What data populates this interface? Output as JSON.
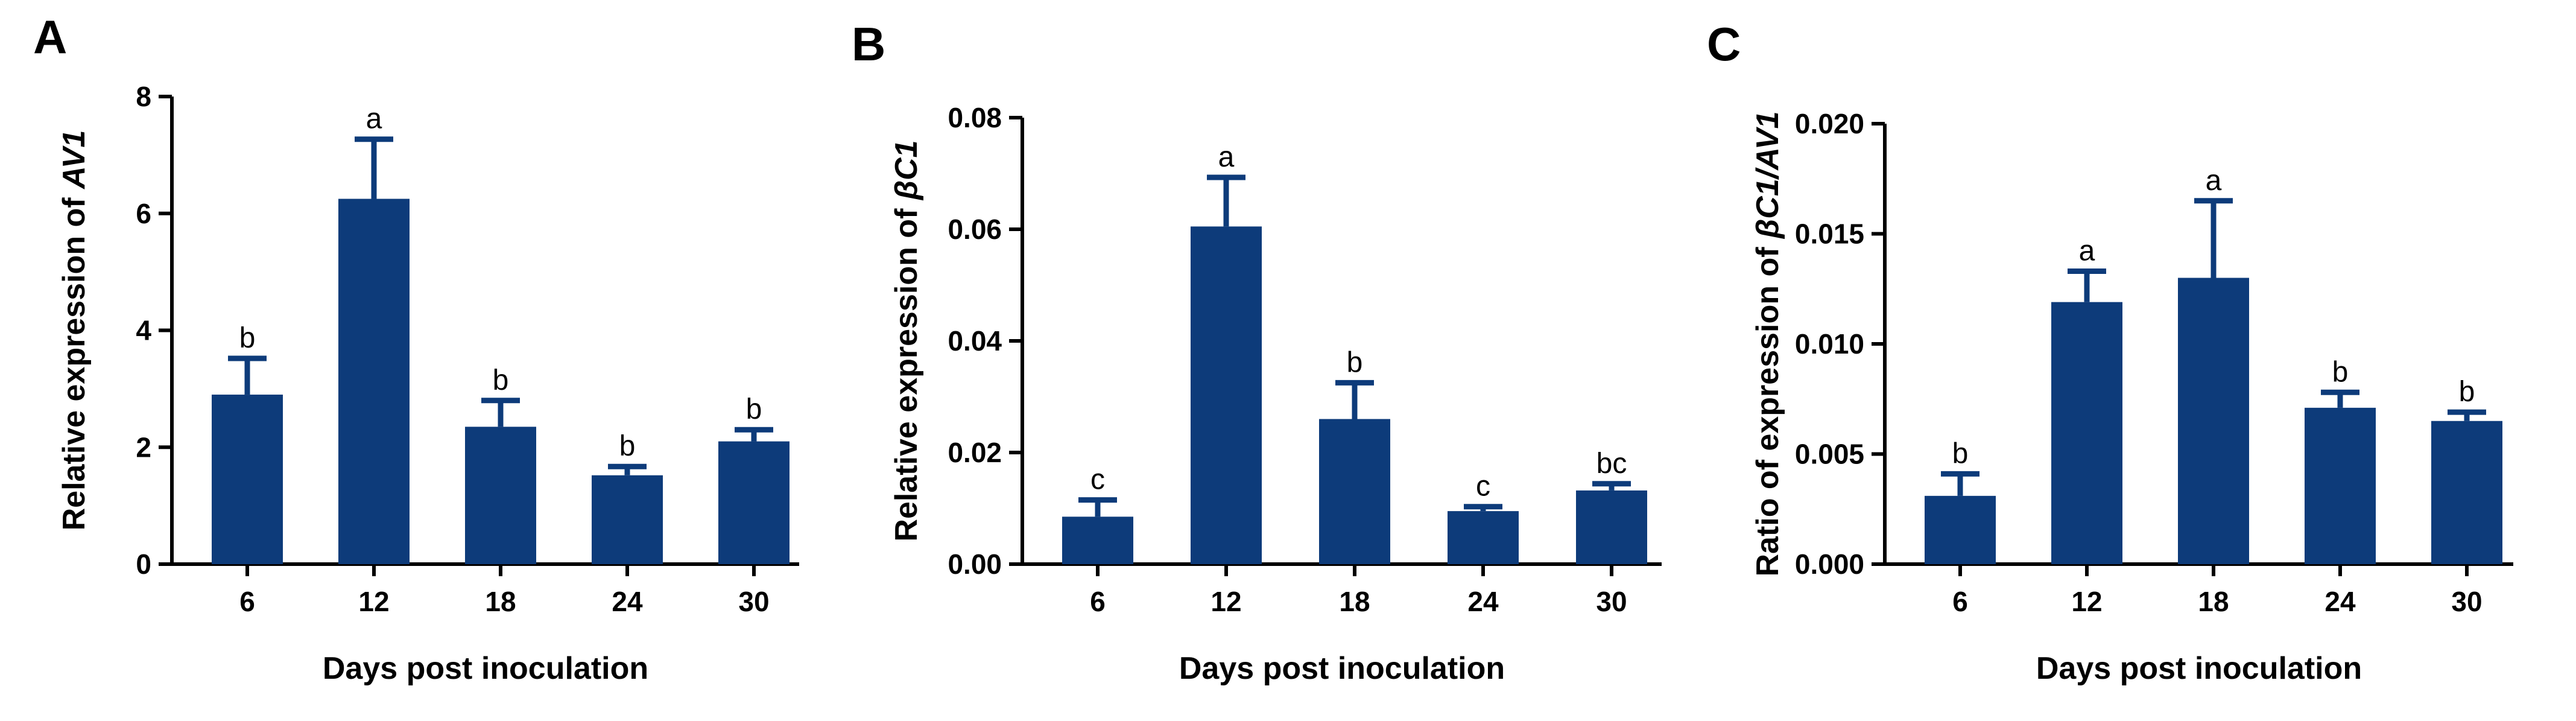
{
  "colors": {
    "bar": "#0d3b7a",
    "axis": "#000000"
  },
  "chart_data": [
    {
      "type": "bar",
      "panel_label": "A",
      "categories": [
        "6",
        "12",
        "18",
        "24",
        "30"
      ],
      "values": [
        2.9,
        6.25,
        2.35,
        1.52,
        2.1
      ],
      "errors": [
        0.62,
        1.02,
        0.45,
        0.15,
        0.2
      ],
      "significance": [
        "b",
        "a",
        "b",
        "b",
        "b"
      ],
      "xlabel": "Days post inoculation",
      "ylabel_prefix": "Relative expression of ",
      "ylabel_italic": "AV1",
      "ylim": [
        0,
        8
      ],
      "yticks": [
        0,
        2,
        4,
        6,
        8
      ],
      "ytick_labels": [
        "0",
        "2",
        "4",
        "6",
        "8"
      ]
    },
    {
      "type": "bar",
      "panel_label": "B",
      "categories": [
        "6",
        "12",
        "18",
        "24",
        "30"
      ],
      "values": [
        0.0085,
        0.0605,
        0.026,
        0.0095,
        0.0132
      ],
      "errors": [
        0.003,
        0.0088,
        0.0065,
        0.0008,
        0.0012
      ],
      "significance": [
        "c",
        "a",
        "b",
        "c",
        "bc"
      ],
      "xlabel": "Days post inoculation",
      "ylabel_prefix": "Relative expression of ",
      "ylabel_italic": "βC1",
      "ylim": [
        0,
        0.08
      ],
      "yticks": [
        0,
        0.02,
        0.04,
        0.06,
        0.08
      ],
      "ytick_labels": [
        "0.00",
        "0.02",
        "0.04",
        "0.06",
        "0.08"
      ]
    },
    {
      "type": "bar",
      "panel_label": "C",
      "categories": [
        "6",
        "12",
        "18",
        "24",
        "30"
      ],
      "values": [
        0.0031,
        0.0119,
        0.013,
        0.0071,
        0.0065
      ],
      "errors": [
        0.001,
        0.0014,
        0.0035,
        0.0007,
        0.0004
      ],
      "significance": [
        "b",
        "a",
        "a",
        "b",
        "b"
      ],
      "xlabel": "Days post inoculation",
      "ylabel_prefix": "Ratio of expression of ",
      "ylabel_italic": "βC1/AV1",
      "ylim": [
        0,
        0.02
      ],
      "yticks": [
        0,
        0.005,
        0.01,
        0.015,
        0.02
      ],
      "ytick_labels": [
        "0.000",
        "0.005",
        "0.010",
        "0.015",
        "0.020"
      ]
    }
  ]
}
